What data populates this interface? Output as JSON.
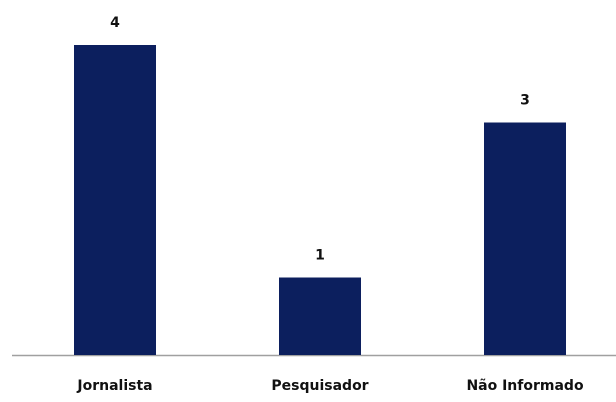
{
  "chart_data": {
    "type": "bar",
    "categories": [
      "Jornalista",
      "Pesquisador",
      "Não Informado"
    ],
    "values": [
      4,
      1,
      3
    ],
    "color": "#0c1f5e",
    "ylim": [
      0,
      4
    ]
  }
}
